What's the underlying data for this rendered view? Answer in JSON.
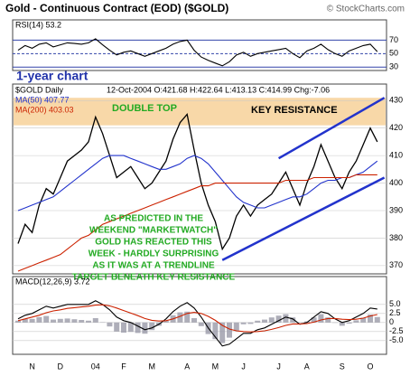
{
  "title": "Gold - Continuous Contract (EOD) ($GOLD)",
  "watermark": "© StockCharts.com",
  "chart_note": "1-year chart",
  "chart_data": [
    {
      "type": "line",
      "label": "RSI(14) 53.2",
      "ylim": [
        25,
        100
      ],
      "yticks": [
        70,
        50,
        30
      ],
      "series": [
        {
          "name": "RSI",
          "color": "#000000",
          "values": [
            55,
            62,
            58,
            64,
            66,
            60,
            63,
            66,
            65,
            64,
            66,
            72,
            63,
            55,
            48,
            52,
            54,
            50,
            46,
            50,
            54,
            58,
            64,
            68,
            70,
            55,
            45,
            40,
            36,
            32,
            38,
            48,
            52,
            46,
            50,
            52,
            54,
            56,
            58,
            50,
            44,
            54,
            58,
            64,
            56,
            50,
            46,
            54,
            58,
            62,
            64,
            53
          ]
        }
      ]
    },
    {
      "type": "line",
      "header": "$GOLD Daily",
      "date_info": "12-Oct-2004 O:421.68 H:422.64 L:413.13 C:414.99 Chg:-7.06",
      "ylim": [
        367,
        436
      ],
      "yticks": [
        370,
        380,
        390,
        400,
        410,
        420,
        430
      ],
      "resistance_band": [
        421,
        431
      ],
      "trendlines": [
        [
          [
            37,
            409
          ],
          [
            52,
            431
          ]
        ],
        [
          [
            29,
            372
          ],
          [
            52,
            402
          ]
        ]
      ],
      "annotations": {
        "double_top": "DOUBLE TOP",
        "key_resistance": "KEY RESISTANCE",
        "note": [
          "AS PREDICTED IN THE",
          "WEEKEND \"MARKETWATCH\"",
          "GOLD HAS REACTED THIS",
          "WEEK - HARDLY SURPRISING",
          "AS IT WAS AT A TRENDLINE",
          "TARGET BENEATH KEY RESISTANCE"
        ]
      },
      "series": [
        {
          "name": "Close",
          "color": "#000000",
          "values": [
            378,
            385,
            382,
            392,
            398,
            396,
            402,
            408,
            410,
            412,
            415,
            424,
            418,
            410,
            402,
            404,
            406,
            402,
            398,
            400,
            404,
            408,
            416,
            422,
            425,
            412,
            400,
            392,
            386,
            376,
            380,
            388,
            392,
            388,
            392,
            394,
            396,
            400,
            404,
            398,
            392,
            400,
            406,
            414,
            408,
            402,
            398,
            404,
            408,
            414,
            420,
            415
          ]
        },
        {
          "name": "MA(50) 407.77",
          "color": "#2233cc",
          "values": [
            390,
            391,
            392,
            393,
            394,
            395,
            397,
            399,
            401,
            403,
            405,
            407,
            409,
            410,
            410,
            410,
            409,
            408,
            407,
            406,
            405,
            405,
            406,
            407,
            409,
            410,
            409,
            407,
            404,
            401,
            398,
            395,
            393,
            392,
            391,
            391,
            392,
            393,
            394,
            395,
            395,
            396,
            398,
            400,
            401,
            401,
            402,
            402,
            403,
            404,
            406,
            408
          ]
        },
        {
          "name": "MA(200) 403.03",
          "color": "#cc2200",
          "values": [
            368,
            369,
            370,
            371,
            372,
            373,
            374,
            376,
            378,
            380,
            381,
            383,
            385,
            386,
            387,
            388,
            389,
            390,
            391,
            392,
            393,
            394,
            395,
            396,
            397,
            398,
            399,
            399,
            400,
            400,
            400,
            400,
            400,
            400,
            400,
            400,
            400,
            400,
            401,
            401,
            401,
            401,
            402,
            402,
            402,
            402,
            402,
            402,
            403,
            403,
            403,
            403
          ]
        }
      ]
    },
    {
      "type": "line",
      "label": "MACD(12,26,9) 3.72",
      "ylim": [
        -8.8,
        12.7
      ],
      "yticks": [
        {
          "value": 5,
          "label": "5.0"
        },
        2.5,
        0,
        -2.5,
        {
          "value": -5,
          "label": "-5.0"
        }
      ],
      "categories": [
        null,
        null,
        "N",
        null,
        null,
        null,
        "D",
        null,
        null,
        null,
        null,
        "04",
        null,
        null,
        null,
        "F",
        null,
        null,
        null,
        "M",
        null,
        null,
        null,
        null,
        "A",
        null,
        null,
        null,
        "M",
        null,
        null,
        null,
        "J",
        null,
        null,
        null,
        null,
        "J",
        null,
        null,
        null,
        "A",
        null,
        null,
        null,
        null,
        "S",
        null,
        null,
        null,
        "O",
        null
      ],
      "series": [
        {
          "name": "Histogram",
          "color": "#9a9aa8",
          "kind": "bar",
          "values": [
            0.5,
            1,
            1,
            1.5,
            1.8,
            0.8,
            1,
            1.1,
            0.9,
            0.7,
            0.5,
            1.2,
            0.1,
            -1.1,
            -2.5,
            -2.8,
            -2.6,
            -2.9,
            -3.1,
            -2.1,
            -0.9,
            0.5,
            2,
            2.8,
            3,
            1.2,
            -1,
            -3.2,
            -4.6,
            -5.7,
            -4.2,
            -2.2,
            -0.5,
            -0.4,
            0.5,
            0.8,
            1.4,
            1.9,
            2.3,
            1.4,
            -0.1,
            0.3,
            1.4,
            2.3,
            1.4,
            -0.1,
            -0.9,
            -0.3,
            0.6,
            1.3,
            2.2,
            1.52
          ]
        },
        {
          "name": "MACD",
          "color": "#000000",
          "values": [
            1,
            2,
            2.5,
            3.5,
            4.5,
            4,
            4.5,
            5,
            5,
            5,
            5,
            6,
            5,
            3.5,
            1.5,
            0.5,
            0,
            -1,
            -2,
            -1.5,
            -0.5,
            1,
            3,
            4.5,
            5.5,
            4,
            1.5,
            -1.5,
            -4,
            -6.5,
            -6,
            -4.5,
            -3,
            -3,
            -2,
            -1.5,
            -0.5,
            0.5,
            1.5,
            1,
            -0.5,
            0,
            1.5,
            3,
            2.5,
            1,
            0,
            0.5,
            1.5,
            2.5,
            4,
            3.72
          ]
        },
        {
          "name": "Signal",
          "color": "#cc2200",
          "values": [
            0.5,
            1,
            1.5,
            2,
            2.7,
            3.2,
            3.5,
            3.9,
            4.1,
            4.3,
            4.5,
            4.8,
            4.9,
            4.6,
            4,
            3.3,
            2.6,
            1.9,
            1.1,
            0.6,
            0.4,
            0.5,
            1,
            1.7,
            2.5,
            2.8,
            2.5,
            1.7,
            0.6,
            -0.8,
            -1.8,
            -2.3,
            -2.5,
            -2.6,
            -2.5,
            -2.3,
            -1.9,
            -1.4,
            -0.8,
            -0.4,
            -0.4,
            -0.3,
            0.1,
            0.7,
            1.1,
            1.1,
            0.9,
            0.8,
            0.9,
            1.2,
            1.8,
            2.2
          ]
        }
      ]
    }
  ]
}
